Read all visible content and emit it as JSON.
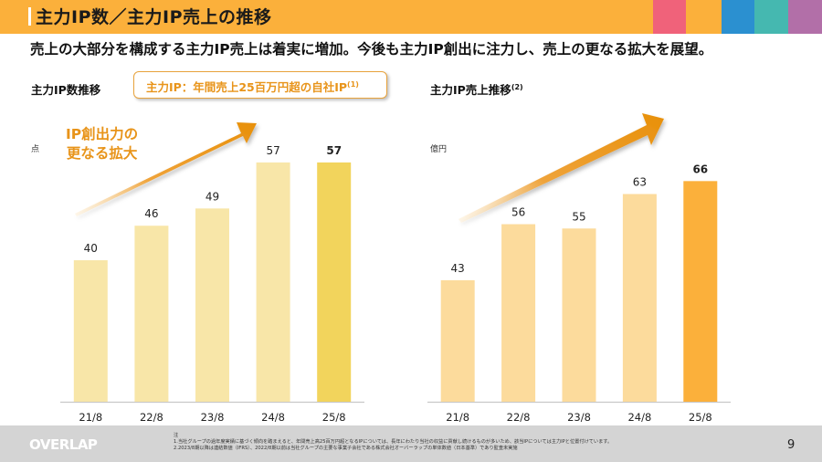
{
  "header": {
    "title": "主力IP数／主力IP売上の推移",
    "accent_colors": [
      "#F0627A",
      "#FBB03B",
      "#2B90D0",
      "#45B8B0",
      "#B26FA8"
    ],
    "bar_color": "#FBB03B"
  },
  "subtitle": "売上の大部分を構成する主力IP売上は着実に増加。今後も主力IP創出に注力し、売上の更なる拡大を展望。",
  "left_section": {
    "title": "主力IP数推移",
    "definition_box": "主力IP：年間売上25百万円超の自社IP",
    "definition_note": "(1)",
    "unit": "点",
    "callout_line1": "IP創出力の",
    "callout_line2": "更なる拡大"
  },
  "right_section": {
    "title": "主力IP売上推移",
    "title_note": "(2)",
    "unit": "億円"
  },
  "chart_data": [
    {
      "type": "bar",
      "title": "主力IP数推移",
      "categories": [
        "21/8",
        "22/8",
        "23/8",
        "24/8",
        "25/8"
      ],
      "values": [
        40,
        46,
        49,
        57,
        57
      ],
      "ylabel": "点",
      "xlabel": "",
      "grid": false,
      "highlight_last": true,
      "colors": {
        "normal": "#F8E6A8",
        "highlight": "#F2D45C"
      }
    },
    {
      "type": "bar",
      "title": "主力IP売上推移",
      "categories": [
        "21/8",
        "22/8",
        "23/8",
        "24/8",
        "25/8"
      ],
      "values": [
        43,
        56,
        55,
        63,
        66
      ],
      "ylabel": "億円",
      "xlabel": "",
      "grid": false,
      "highlight_last": true,
      "colors": {
        "normal": "#FCDB9C",
        "highlight": "#FBB03B"
      }
    }
  ],
  "footer": {
    "logo": "OVERLAP",
    "notes_heading": "注",
    "note1": "1.当社グループの過年度実績に基づく傾向を踏まえると、年間売上高25百万円超となるIPについては、長年にわたり当社の収益に貢献し続けるものが多いため、該当IPについては主力IPと位置付けています。",
    "note2": "2.2023/8期以降は連結数値（IFRS）、2022/8期以前は当社グループの主要な事業子会社である株式会社オーバーラップの単体数値（日本基準）であり監査未実施",
    "page_number": "9"
  }
}
